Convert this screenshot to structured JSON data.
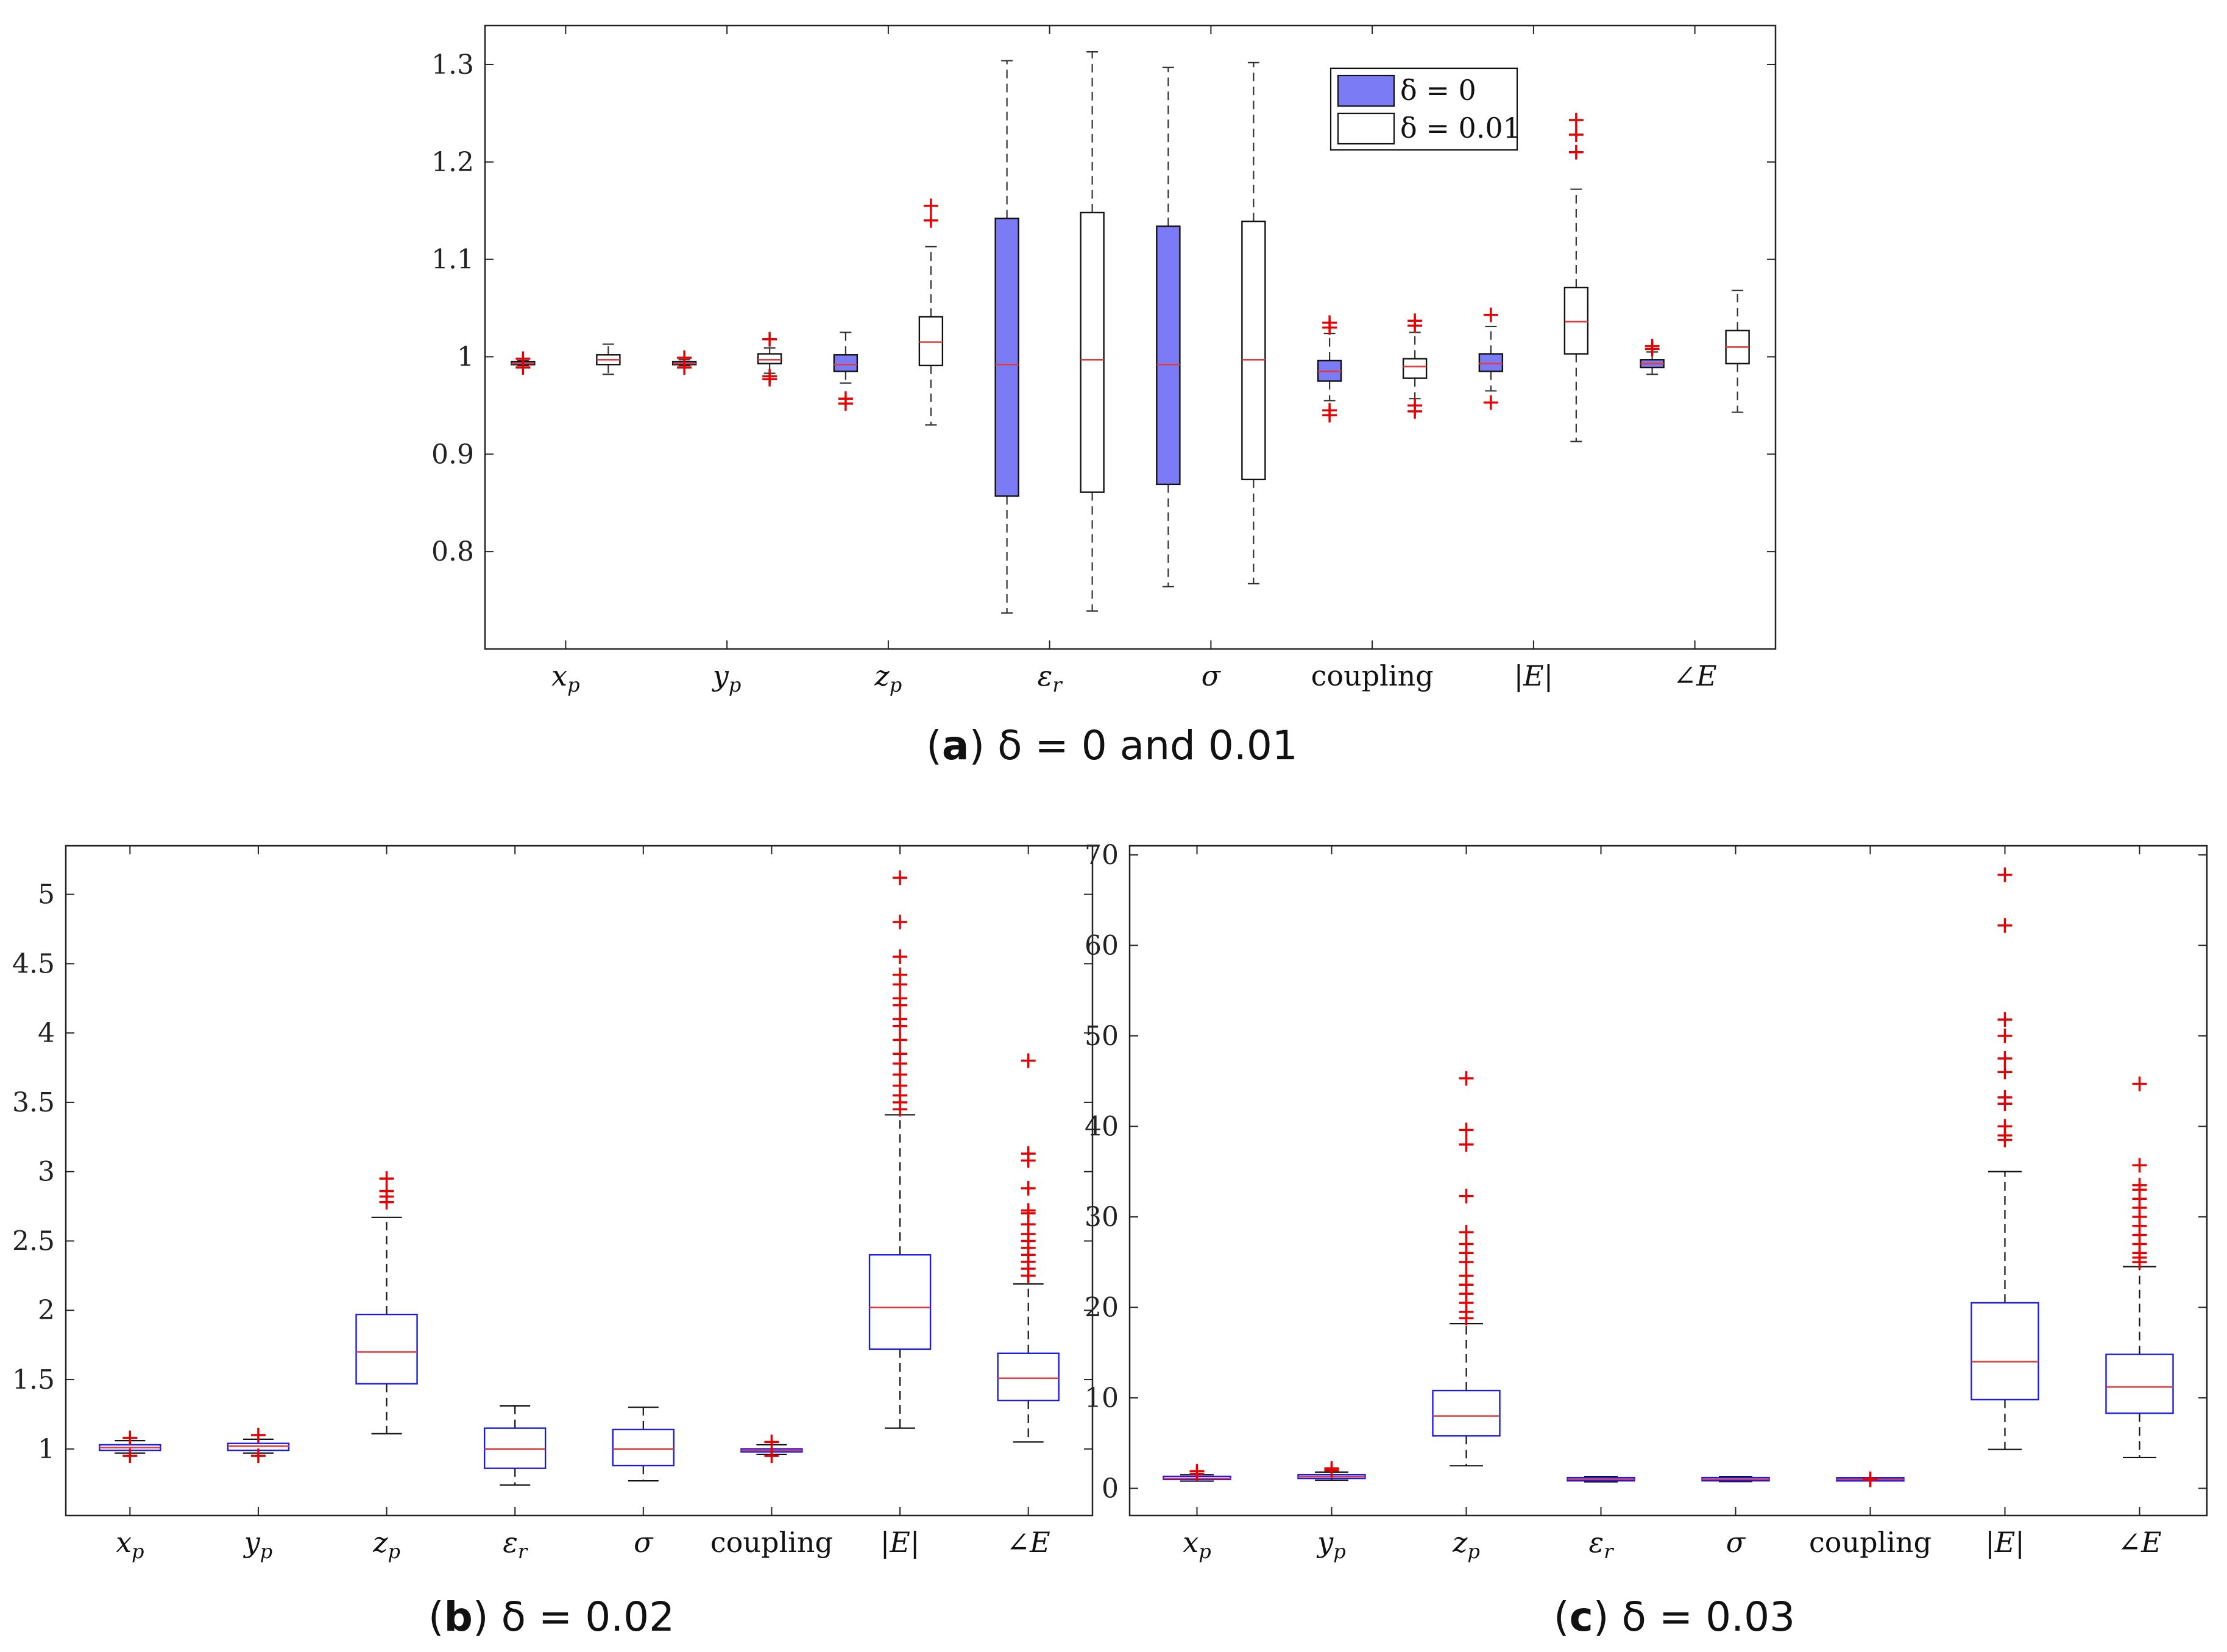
{
  "chart_data": [
    {
      "type": "box",
      "panel_label": "a",
      "caption_text": "δ = 0 and 0.01",
      "categories": [
        "x_p",
        "y_p",
        "z_p",
        "ε_r",
        "σ",
        "coupling",
        "|E|",
        "∠E"
      ],
      "ylim": [
        0.7,
        1.34
      ],
      "yticks": [
        "0.8",
        "0.9",
        "1",
        "1.1",
        "1.2",
        "1.3"
      ],
      "legend": {
        "placement": "top-center",
        "entries": [
          "δ = 0",
          "δ = 0.01"
        ]
      },
      "colors": {
        "filled_box": "#7b7bf6",
        "white_box": "#ffffff",
        "median": "#e23b3b",
        "outlier": "#e60000",
        "axis": "#222222"
      },
      "series": [
        {
          "name": "δ = 0",
          "boxes": [
            {
              "min": 0.991,
              "q1": 0.992,
              "median": 0.993,
              "q3": 0.995,
              "max": 0.996,
              "outliers": [
                0.989,
                0.998
              ]
            },
            {
              "min": 0.991,
              "q1": 0.992,
              "median": 0.993,
              "q3": 0.995,
              "max": 0.997,
              "outliers": [
                0.989,
                0.999
              ]
            },
            {
              "min": 0.973,
              "q1": 0.985,
              "median": 0.992,
              "q3": 1.002,
              "max": 1.025,
              "outliers": [
                0.952,
                0.957
              ]
            },
            {
              "min": 0.737,
              "q1": 0.857,
              "median": 0.992,
              "q3": 1.142,
              "max": 1.304,
              "outliers": []
            },
            {
              "min": 0.764,
              "q1": 0.869,
              "median": 0.992,
              "q3": 1.134,
              "max": 1.297,
              "outliers": []
            },
            {
              "min": 0.955,
              "q1": 0.975,
              "median": 0.985,
              "q3": 0.996,
              "max": 1.024,
              "outliers": [
                0.94,
                0.945,
                1.03,
                1.035
              ]
            },
            {
              "min": 0.965,
              "q1": 0.985,
              "median": 0.993,
              "q3": 1.003,
              "max": 1.031,
              "outliers": [
                0.953,
                1.043
              ]
            },
            {
              "min": 0.982,
              "q1": 0.989,
              "median": 0.993,
              "q3": 0.997,
              "max": 1.005,
              "outliers": [
                1.008,
                1.011
              ]
            }
          ]
        },
        {
          "name": "δ = 0.01",
          "boxes": [
            {
              "min": 0.982,
              "q1": 0.992,
              "median": 0.997,
              "q3": 1.002,
              "max": 1.013,
              "outliers": []
            },
            {
              "min": 0.983,
              "q1": 0.993,
              "median": 0.997,
              "q3": 1.003,
              "max": 1.009,
              "outliers": [
                0.977,
                0.98,
                1.018
              ]
            },
            {
              "min": 0.93,
              "q1": 0.991,
              "median": 1.015,
              "q3": 1.041,
              "max": 1.113,
              "outliers": [
                1.14,
                1.155
              ]
            },
            {
              "min": 0.739,
              "q1": 0.861,
              "median": 0.997,
              "q3": 1.148,
              "max": 1.313,
              "outliers": []
            },
            {
              "min": 0.767,
              "q1": 0.874,
              "median": 0.997,
              "q3": 1.139,
              "max": 1.302,
              "outliers": []
            },
            {
              "min": 0.957,
              "q1": 0.978,
              "median": 0.99,
              "q3": 0.998,
              "max": 1.025,
              "outliers": [
                0.944,
                0.95,
                1.032,
                1.037
              ]
            },
            {
              "min": 0.913,
              "q1": 1.003,
              "median": 1.036,
              "q3": 1.071,
              "max": 1.172,
              "outliers": [
                1.21,
                1.228,
                1.243
              ]
            },
            {
              "min": 0.943,
              "q1": 0.993,
              "median": 1.01,
              "q3": 1.027,
              "max": 1.068,
              "outliers": []
            }
          ]
        }
      ]
    },
    {
      "type": "box",
      "panel_label": "b",
      "caption_text": "δ = 0.02",
      "categories": [
        "x_p",
        "y_p",
        "z_p",
        "ε_r",
        "σ",
        "coupling",
        "|E|",
        "∠E"
      ],
      "ylim": [
        0.52,
        5.35
      ],
      "yticks": [
        "1",
        "1.5",
        "2",
        "2.5",
        "3",
        "3.5",
        "4",
        "4.5",
        "5"
      ],
      "boxes": [
        {
          "min": 0.97,
          "q1": 0.99,
          "median": 1.01,
          "q3": 1.03,
          "max": 1.06,
          "outliers": [
            0.95,
            1.08
          ]
        },
        {
          "min": 0.97,
          "q1": 0.99,
          "median": 1.02,
          "q3": 1.04,
          "max": 1.07,
          "outliers": [
            0.95,
            1.1
          ]
        },
        {
          "min": 1.11,
          "q1": 1.47,
          "median": 1.7,
          "q3": 1.97,
          "max": 2.67,
          "outliers": [
            2.78,
            2.82,
            2.86,
            2.95
          ]
        },
        {
          "min": 0.74,
          "q1": 0.86,
          "median": 1.0,
          "q3": 1.15,
          "max": 1.31,
          "outliers": []
        },
        {
          "min": 0.77,
          "q1": 0.88,
          "median": 1.0,
          "q3": 1.14,
          "max": 1.3,
          "outliers": []
        },
        {
          "min": 0.96,
          "q1": 0.98,
          "median": 0.99,
          "q3": 1.0,
          "max": 1.03,
          "outliers": [
            0.95,
            1.05
          ]
        },
        {
          "min": 1.15,
          "q1": 1.72,
          "median": 2.02,
          "q3": 2.4,
          "max": 3.41,
          "outliers": [
            3.45,
            3.5,
            3.55,
            3.62,
            3.7,
            3.78,
            3.85,
            3.95,
            4.05,
            4.1,
            4.2,
            4.25,
            4.35,
            4.42,
            4.55,
            4.8,
            5.12
          ]
        },
        {
          "min": 1.05,
          "q1": 1.35,
          "median": 1.51,
          "q3": 1.69,
          "max": 2.19,
          "outliers": [
            2.25,
            2.3,
            2.35,
            2.4,
            2.45,
            2.5,
            2.55,
            2.62,
            2.7,
            2.72,
            2.88,
            3.08,
            3.13,
            3.8
          ]
        }
      ]
    },
    {
      "type": "box",
      "panel_label": "c",
      "caption_text": "δ = 0.03",
      "categories": [
        "x_p",
        "y_p",
        "z_p",
        "ε_r",
        "σ",
        "coupling",
        "|E|",
        "∠E"
      ],
      "ylim": [
        -3,
        71
      ],
      "yticks": [
        "0",
        "10",
        "20",
        "30",
        "40",
        "50",
        "60",
        "70"
      ],
      "boxes": [
        {
          "min": 0.8,
          "q1": 1.0,
          "median": 1.1,
          "q3": 1.3,
          "max": 1.5,
          "outliers": [
            1.6,
            1.9
          ]
        },
        {
          "min": 0.9,
          "q1": 1.1,
          "median": 1.3,
          "q3": 1.5,
          "max": 1.8,
          "outliers": [
            2.0,
            2.2
          ]
        },
        {
          "min": 2.5,
          "q1": 5.8,
          "median": 8.0,
          "q3": 10.8,
          "max": 18.2,
          "outliers": [
            18.8,
            19.5,
            20.5,
            21.5,
            22.5,
            23.5,
            25.0,
            26.0,
            27.0,
            28.3,
            32.3,
            38.0,
            39.6,
            45.3
          ]
        },
        {
          "min": 0.72,
          "q1": 0.85,
          "median": 0.99,
          "q3": 1.15,
          "max": 1.3,
          "outliers": []
        },
        {
          "min": 0.75,
          "q1": 0.87,
          "median": 0.99,
          "q3": 1.14,
          "max": 1.3,
          "outliers": []
        },
        {
          "min": 0.95,
          "q1": 0.98,
          "median": 0.99,
          "q3": 1.0,
          "max": 1.03,
          "outliers": [
            0.94,
            1.06
          ]
        },
        {
          "min": 4.3,
          "q1": 9.8,
          "median": 14.0,
          "q3": 20.5,
          "max": 35.0,
          "outliers": [
            38.5,
            39.0,
            40.0,
            42.5,
            43.2,
            46.0,
            47.5,
            50.0,
            51.8,
            62.2,
            67.8
          ]
        },
        {
          "min": 3.4,
          "q1": 8.3,
          "median": 11.2,
          "q3": 14.8,
          "max": 24.5,
          "outliers": [
            25.0,
            25.5,
            26.0,
            27.0,
            28.0,
            29.0,
            30.0,
            31.0,
            32.0,
            33.0,
            33.5,
            35.7,
            44.7
          ]
        }
      ]
    }
  ]
}
